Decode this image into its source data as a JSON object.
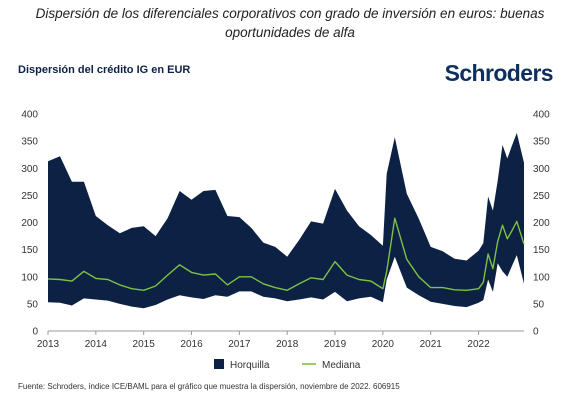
{
  "header": {
    "caption_line1": "Dispersión de los diferenciales corporativos con grado de inversión en euros: buenas",
    "caption_line2": "oportunidades de alfa",
    "subtitle": "Dispersión del crédito IG en EUR",
    "logo": "Schroders"
  },
  "footer": "Fuente: Schroders, índice ICE/BAML para el gráfico que muestra la dispersión, noviembre de 2022. 606915",
  "colors": {
    "band": "#0c2144",
    "median": "#7cc242",
    "axis": "#999999",
    "text": "#333333"
  },
  "chart_data": {
    "type": "area",
    "title": "Dispersión del crédito IG en EUR",
    "x_ticks": [
      "2013",
      "2014",
      "2015",
      "2016",
      "2017",
      "2018",
      "2019",
      "2020",
      "2021",
      "2022"
    ],
    "y_ticks": [
      0,
      50,
      100,
      150,
      200,
      250,
      300,
      350,
      400
    ],
    "ylim": [
      0,
      400
    ],
    "xlim": [
      2013.0,
      2022.95
    ],
    "dual_y_axis": true,
    "grid": false,
    "legend_position": "bottom",
    "series": [
      {
        "name": "Horquilla",
        "kind": "band",
        "x": [
          2013.0,
          2013.25,
          2013.5,
          2013.75,
          2014.0,
          2014.25,
          2014.5,
          2014.75,
          2015.0,
          2015.25,
          2015.5,
          2015.75,
          2016.0,
          2016.25,
          2016.5,
          2016.75,
          2017.0,
          2017.25,
          2017.5,
          2017.75,
          2018.0,
          2018.25,
          2018.5,
          2018.75,
          2019.0,
          2019.25,
          2019.5,
          2019.75,
          2020.0,
          2020.08,
          2020.25,
          2020.5,
          2020.75,
          2021.0,
          2021.25,
          2021.5,
          2021.75,
          2022.0,
          2022.1,
          2022.2,
          2022.3,
          2022.4,
          2022.5,
          2022.6,
          2022.7,
          2022.8,
          2022.95
        ],
        "upper": [
          313,
          322,
          275,
          275,
          212,
          195,
          180,
          190,
          193,
          175,
          208,
          258,
          242,
          258,
          260,
          212,
          210,
          190,
          163,
          155,
          137,
          168,
          202,
          198,
          262,
          222,
          193,
          177,
          157,
          290,
          357,
          253,
          207,
          155,
          147,
          133,
          130,
          148,
          162,
          248,
          222,
          277,
          343,
          318,
          342,
          365,
          310
        ],
        "lower": [
          53,
          52,
          47,
          60,
          58,
          56,
          50,
          45,
          42,
          48,
          58,
          66,
          62,
          59,
          66,
          63,
          73,
          73,
          63,
          60,
          55,
          58,
          62,
          58,
          72,
          55,
          60,
          63,
          53,
          95,
          137,
          80,
          66,
          54,
          50,
          46,
          44,
          52,
          57,
          95,
          72,
          125,
          110,
          100,
          120,
          140,
          87
        ]
      },
      {
        "name": "Mediana",
        "kind": "line",
        "x": [
          2013.0,
          2013.25,
          2013.5,
          2013.75,
          2014.0,
          2014.25,
          2014.5,
          2014.75,
          2015.0,
          2015.25,
          2015.5,
          2015.75,
          2016.0,
          2016.25,
          2016.5,
          2016.75,
          2017.0,
          2017.25,
          2017.5,
          2017.75,
          2018.0,
          2018.25,
          2018.5,
          2018.75,
          2019.0,
          2019.25,
          2019.5,
          2019.75,
          2020.0,
          2020.08,
          2020.25,
          2020.5,
          2020.75,
          2021.0,
          2021.25,
          2021.5,
          2021.75,
          2022.0,
          2022.1,
          2022.2,
          2022.3,
          2022.4,
          2022.5,
          2022.6,
          2022.7,
          2022.8,
          2022.95
        ],
        "values": [
          96,
          95,
          92,
          110,
          97,
          95,
          85,
          78,
          75,
          83,
          103,
          122,
          108,
          103,
          105,
          85,
          100,
          100,
          87,
          80,
          75,
          87,
          98,
          95,
          128,
          103,
          95,
          92,
          78,
          110,
          208,
          132,
          100,
          80,
          80,
          76,
          75,
          78,
          90,
          142,
          115,
          165,
          195,
          170,
          185,
          202,
          160
        ]
      }
    ]
  }
}
